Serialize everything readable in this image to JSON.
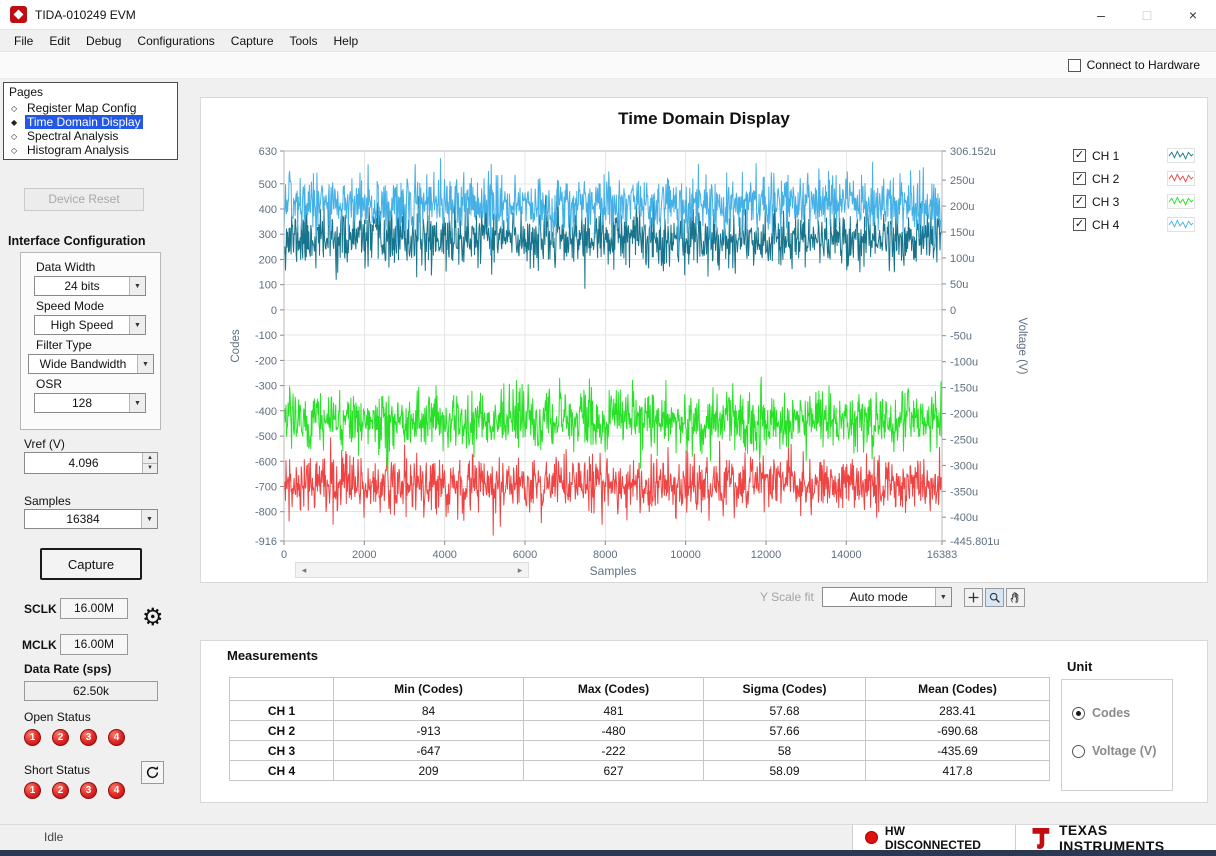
{
  "window": {
    "title": "TIDA-010249 EVM"
  },
  "icons": {
    "minimize": "–",
    "maximize": "□",
    "close": "×",
    "dropdown_arrow": "▼",
    "spin_up": "▲",
    "spin_down": "▼",
    "check": "✓",
    "diamond_selected": "◆",
    "diamond_unselected": "◇",
    "gear": "⚙",
    "scroll_left": "◂",
    "scroll_right": "▸"
  },
  "colors": {
    "selection": "#2457e6",
    "led-red": "#e02424",
    "hw-red": "#dd1111",
    "brand-red": "#bf0d12"
  },
  "menu": {
    "items": [
      "File",
      "Edit",
      "Debug",
      "Configurations",
      "Capture",
      "Tools",
      "Help"
    ]
  },
  "toolbar": {
    "connect_label": "Connect to Hardware"
  },
  "pages": {
    "title": "Pages",
    "items": [
      {
        "label": "Register Map Config",
        "selected": false
      },
      {
        "label": "Time Domain Display",
        "selected": true
      },
      {
        "label": "Spectral Analysis",
        "selected": false
      },
      {
        "label": "Histogram Analysis",
        "selected": false
      }
    ]
  },
  "sidebar": {
    "device_reset_label": "Device Reset",
    "interface_config": {
      "title": "Interface Configuration",
      "fields": [
        {
          "label": "Data Width",
          "value": "24 bits"
        },
        {
          "label": "Speed Mode",
          "value": "High Speed"
        },
        {
          "label": "Filter Type",
          "value": "Wide Bandwidth"
        },
        {
          "label": "OSR",
          "value": "128"
        }
      ]
    },
    "vref": {
      "label": "Vref (V)",
      "value": "4.096"
    },
    "samples": {
      "label": "Samples",
      "value": "16384"
    },
    "capture_button": "Capture",
    "sclk": {
      "label": "SCLK",
      "value": "16.00M"
    },
    "mclk": {
      "label": "MCLK",
      "value": "16.00M"
    },
    "data_rate": {
      "label": "Data Rate (sps)",
      "value": "62.50k"
    },
    "open_status": {
      "label": "Open Status",
      "channels": [
        "1",
        "2",
        "3",
        "4"
      ]
    },
    "short_status": {
      "label": "Short Status",
      "channels": [
        "1",
        "2",
        "3",
        "4"
      ]
    }
  },
  "chart_controls": {
    "y_scale_label": "Y Scale fit",
    "mode_value": "Auto mode"
  },
  "measurements": {
    "title": "Measurements",
    "columns": [
      "",
      "Min (Codes)",
      "Max (Codes)",
      "Sigma (Codes)",
      "Mean (Codes)"
    ],
    "rows": [
      {
        "ch": "CH 1",
        "values": [
          "84",
          "481",
          "57.68",
          "283.41"
        ]
      },
      {
        "ch": "CH 2",
        "values": [
          "-913",
          "-480",
          "57.66",
          "-690.68"
        ]
      },
      {
        "ch": "CH 3",
        "values": [
          "-647",
          "-222",
          "58",
          "-435.69"
        ]
      },
      {
        "ch": "CH 4",
        "values": [
          "209",
          "627",
          "58.09",
          "417.8"
        ]
      }
    ],
    "unit": {
      "title": "Unit",
      "options": [
        {
          "label": "Codes",
          "selected": true
        },
        {
          "label": "Voltage (V)",
          "selected": false
        }
      ]
    }
  },
  "statusbar": {
    "state": "Idle",
    "hw_status": "HW DISCONNECTED",
    "brand": "TEXAS INSTRUMENTS"
  },
  "chart_data": {
    "type": "line",
    "title": "Time Domain Display",
    "xlabel": "Samples",
    "ylabel_left": "Codes",
    "ylabel_right": "Voltage (V)",
    "x_range": [
      0,
      16383
    ],
    "y_range_codes": [
      -916,
      630
    ],
    "y_range_voltage_u": [
      -445.801,
      306.152
    ],
    "grid": true,
    "legend_position": "right",
    "x_ticks": [
      {
        "v": 0,
        "label": "0"
      },
      {
        "v": 2000,
        "label": "2000"
      },
      {
        "v": 4000,
        "label": "4000"
      },
      {
        "v": 6000,
        "label": "6000"
      },
      {
        "v": 8000,
        "label": "8000"
      },
      {
        "v": 10000,
        "label": "10000"
      },
      {
        "v": 12000,
        "label": "12000"
      },
      {
        "v": 14000,
        "label": "14000"
      },
      {
        "v": 16383,
        "label": "16383"
      }
    ],
    "y_ticks_left": [
      {
        "v": 630,
        "label": "630"
      },
      {
        "v": 500,
        "label": "500"
      },
      {
        "v": 400,
        "label": "400"
      },
      {
        "v": 300,
        "label": "300"
      },
      {
        "v": 200,
        "label": "200"
      },
      {
        "v": 100,
        "label": "100"
      },
      {
        "v": 0,
        "label": "0"
      },
      {
        "v": -100,
        "label": "-100"
      },
      {
        "v": -200,
        "label": "-200"
      },
      {
        "v": -300,
        "label": "-300"
      },
      {
        "v": -400,
        "label": "-400"
      },
      {
        "v": -500,
        "label": "-500"
      },
      {
        "v": -600,
        "label": "-600"
      },
      {
        "v": -700,
        "label": "-700"
      },
      {
        "v": -800,
        "label": "-800"
      },
      {
        "v": -916,
        "label": "-916"
      }
    ],
    "y_ticks_right": [
      {
        "v": 306.152,
        "label": "306.152u"
      },
      {
        "v": 250,
        "label": "250u"
      },
      {
        "v": 200,
        "label": "200u"
      },
      {
        "v": 150,
        "label": "150u"
      },
      {
        "v": 100,
        "label": "100u"
      },
      {
        "v": 50,
        "label": "50u"
      },
      {
        "v": 0,
        "label": "0"
      },
      {
        "v": -50,
        "label": "-50u"
      },
      {
        "v": -100,
        "label": "-100u"
      },
      {
        "v": -150,
        "label": "-150u"
      },
      {
        "v": -200,
        "label": "-200u"
      },
      {
        "v": -250,
        "label": "-250u"
      },
      {
        "v": -300,
        "label": "-300u"
      },
      {
        "v": -350,
        "label": "-350u"
      },
      {
        "v": -400,
        "label": "-400u"
      },
      {
        "v": -445.801,
        "label": "-445.801u"
      }
    ],
    "series": [
      {
        "name": "CH 1",
        "color": "#17748c",
        "signal": "gaussian-noise",
        "mean": 283.41,
        "sigma": 57.68,
        "min": 84,
        "max": 481,
        "n_samples": 16384
      },
      {
        "name": "CH 2",
        "color": "#ef4444",
        "signal": "gaussian-noise",
        "mean": -690.68,
        "sigma": 57.66,
        "min": -913,
        "max": -480,
        "n_samples": 16384
      },
      {
        "name": "CH 3",
        "color": "#29e029",
        "signal": "gaussian-noise",
        "mean": -435.69,
        "sigma": 58.0,
        "min": -647,
        "max": -222,
        "n_samples": 16384
      },
      {
        "name": "CH 4",
        "color": "#45b0e6",
        "signal": "gaussian-noise",
        "mean": 417.8,
        "sigma": 58.09,
        "min": 209,
        "max": 627,
        "n_samples": 16384
      }
    ],
    "draw_order": [
      1,
      2,
      0,
      3
    ]
  }
}
